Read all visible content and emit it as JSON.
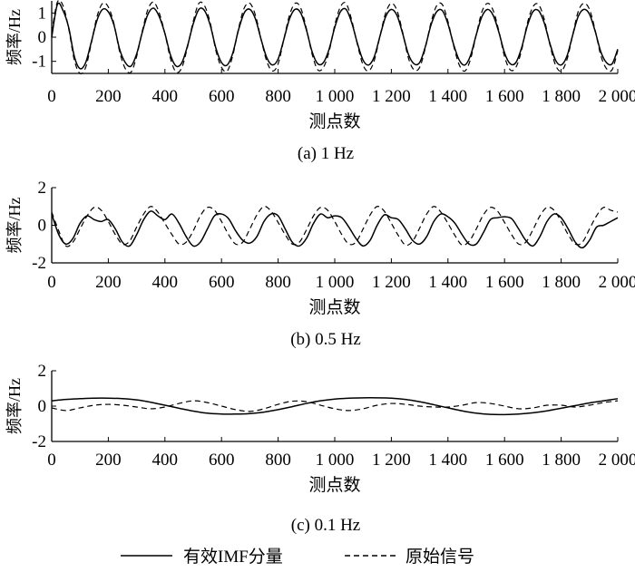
{
  "figure": {
    "legend": [
      {
        "label": "有效IMF分量",
        "style": "solid",
        "color": "#000000"
      },
      {
        "label": "原始信号",
        "style": "dashed",
        "color": "#000000"
      }
    ]
  },
  "chart_data": [
    {
      "type": "line",
      "subtitle": "(a) 1 Hz",
      "xlabel": "测点数",
      "ylabel": "频率/Hz",
      "xlim": [
        0,
        2000
      ],
      "ylim": [
        -1.5,
        1.5
      ],
      "xticks": [
        0,
        200,
        400,
        600,
        800,
        1000,
        1200,
        1400,
        1600,
        1800,
        2000
      ],
      "xtick_labels": [
        "0",
        "200",
        "400",
        "600",
        "800",
        "1 000",
        "1 200",
        "1 400",
        "1 600",
        "1 800",
        "2 000"
      ],
      "yticks": [
        1,
        0,
        -1
      ],
      "ytick_labels": [
        "1",
        "0",
        "-1"
      ],
      "series": [
        {
          "name": "有效IMF分量",
          "style": "solid",
          "x": [
            0,
            20,
            40,
            60,
            80,
            100,
            120,
            140,
            160,
            180,
            200,
            220,
            240,
            260,
            280,
            300,
            320,
            340,
            360,
            380,
            400,
            420,
            440,
            460,
            480,
            500,
            520,
            540,
            560,
            580,
            600,
            620,
            640,
            660,
            680,
            700,
            720,
            740,
            760,
            780,
            800,
            820,
            840,
            860,
            880,
            900,
            920,
            940,
            960,
            980,
            1000,
            1020,
            1040,
            1060,
            1080,
            1100,
            1120,
            1140,
            1160,
            1180,
            1200,
            1220,
            1240,
            1260,
            1280,
            1300,
            1320,
            1340,
            1360,
            1380,
            1400,
            1420,
            1440,
            1460,
            1480,
            1500,
            1520,
            1540,
            1560,
            1580,
            1600,
            1620,
            1640,
            1660,
            1680,
            1700,
            1720,
            1740,
            1760,
            1780,
            1800,
            1820,
            1840,
            1860,
            1880,
            1900,
            1920,
            1940,
            1960,
            1980,
            2000
          ],
          "y": [
            0,
            1.35,
            1.1,
            0.4,
            -0.8,
            -1.3,
            -1.05,
            -0.2,
            0.7,
            1.15,
            1.05,
            0.5,
            -0.5,
            -1.05,
            -1.2,
            -0.7,
            0.2,
            0.95,
            1.2,
            0.85,
            0.15,
            -0.75,
            -1.2,
            -1.05,
            -0.35,
            0.55,
            1.15,
            1.1,
            0.5,
            -0.45,
            -1.05,
            -1.15,
            -0.65,
            0.3,
            1.0,
            1.15,
            0.75,
            -0.1,
            -0.85,
            -1.15,
            -0.9,
            -0.1,
            0.75,
            1.15,
            1.0,
            0.3,
            -0.6,
            -1.1,
            -1.05,
            -0.5,
            0.4,
            1.05,
            1.15,
            0.6,
            -0.25,
            -0.95,
            -1.15,
            -0.8,
            0.05,
            0.85,
            1.15,
            0.9,
            0.15,
            -0.7,
            -1.1,
            -1.05,
            -0.4,
            0.5,
            1.05,
            1.1,
            0.55,
            -0.3,
            -0.95,
            -1.15,
            -0.75,
            0.1,
            0.85,
            1.15,
            0.9,
            0.2,
            -0.65,
            -1.1,
            -1.05,
            -0.45,
            0.45,
            1.05,
            1.1,
            0.6,
            -0.25,
            -0.95,
            -1.15,
            -0.8,
            0.05,
            0.85,
            1.15,
            0.95,
            0.25,
            -0.6,
            -1.05,
            -1.1,
            -0.5
          ]
        },
        {
          "name": "原始信号",
          "style": "dashed",
          "x": [
            0,
            20,
            40,
            60,
            80,
            100,
            120,
            140,
            160,
            180,
            200,
            220,
            240,
            260,
            280,
            300,
            320,
            340,
            360,
            380,
            400,
            420,
            440,
            460,
            480,
            500,
            520,
            540,
            560,
            580,
            600,
            620,
            640,
            660,
            680,
            700,
            720,
            740,
            760,
            780,
            800,
            820,
            840,
            860,
            880,
            900,
            920,
            940,
            960,
            980,
            1000,
            1020,
            1040,
            1060,
            1080,
            1100,
            1120,
            1140,
            1160,
            1180,
            1200,
            1220,
            1240,
            1260,
            1280,
            1300,
            1320,
            1340,
            1360,
            1380,
            1400,
            1420,
            1440,
            1460,
            1480,
            1500,
            1520,
            1540,
            1560,
            1580,
            1600,
            1620,
            1640,
            1660,
            1680,
            1700,
            1720,
            1740,
            1760,
            1780,
            1800,
            1820,
            1840,
            1860,
            1880,
            1900,
            1920,
            1940,
            1960,
            1980,
            2000
          ],
          "y": [
            0.2,
            1.45,
            1.3,
            0.35,
            -0.95,
            -1.5,
            -1.25,
            -0.25,
            0.85,
            1.4,
            1.25,
            0.55,
            -0.6,
            -1.3,
            -1.45,
            -0.8,
            0.25,
            1.15,
            1.45,
            1.0,
            0.15,
            -0.9,
            -1.45,
            -1.25,
            -0.4,
            0.65,
            1.4,
            1.3,
            0.6,
            -0.55,
            -1.25,
            -1.4,
            -0.75,
            0.35,
            1.2,
            1.4,
            0.9,
            -0.1,
            -1.0,
            -1.4,
            -1.1,
            -0.1,
            0.9,
            1.4,
            1.2,
            0.35,
            -0.7,
            -1.35,
            -1.25,
            -0.6,
            0.5,
            1.25,
            1.4,
            0.7,
            -0.3,
            -1.15,
            -1.4,
            -0.95,
            0.05,
            1.0,
            1.4,
            1.1,
            0.2,
            -0.85,
            -1.35,
            -1.25,
            -0.45,
            0.6,
            1.3,
            1.35,
            0.65,
            -0.35,
            -1.15,
            -1.4,
            -0.9,
            0.1,
            1.05,
            1.4,
            1.1,
            0.25,
            -0.8,
            -1.35,
            -1.25,
            -0.55,
            0.55,
            1.25,
            1.35,
            0.75,
            -0.3,
            -1.15,
            -1.4,
            -0.95,
            0.05,
            1.05,
            1.4,
            1.15,
            0.3,
            -0.75,
            -1.3,
            -1.35,
            -0.55
          ]
        }
      ]
    },
    {
      "type": "line",
      "subtitle": "(b) 0.5 Hz",
      "xlabel": "测点数",
      "ylabel": "频率/Hz",
      "xlim": [
        0,
        2000
      ],
      "ylim": [
        -2,
        2
      ],
      "xticks": [
        0,
        200,
        400,
        600,
        800,
        1000,
        1200,
        1400,
        1600,
        1800,
        2000
      ],
      "xtick_labels": [
        "0",
        "200",
        "400",
        "600",
        "800",
        "1 000",
        "1 200",
        "1 400",
        "1 600",
        "1 800",
        "2 000"
      ],
      "yticks": [
        2,
        0,
        -2
      ],
      "ytick_labels": [
        "2",
        "0",
        "-2"
      ],
      "series": [
        {
          "name": "有效IMF分量",
          "style": "solid",
          "x": [
            0,
            25,
            50,
            75,
            100,
            125,
            150,
            175,
            200,
            225,
            250,
            275,
            300,
            325,
            350,
            375,
            400,
            425,
            450,
            475,
            500,
            525,
            550,
            575,
            600,
            625,
            650,
            675,
            700,
            725,
            750,
            775,
            800,
            825,
            850,
            875,
            900,
            925,
            950,
            975,
            1000,
            1025,
            1050,
            1075,
            1100,
            1125,
            1150,
            1175,
            1200,
            1225,
            1250,
            1275,
            1300,
            1325,
            1350,
            1375,
            1400,
            1425,
            1450,
            1475,
            1500,
            1525,
            1550,
            1575,
            1600,
            1625,
            1650,
            1675,
            1700,
            1725,
            1750,
            1775,
            1800,
            1825,
            1850,
            1875,
            1900,
            1925,
            1950,
            1975,
            2000
          ],
          "y": [
            0.6,
            -0.5,
            -1.0,
            -0.7,
            0.1,
            0.5,
            0.3,
            0.2,
            0.3,
            -0.2,
            -0.9,
            -1.1,
            -0.5,
            0.3,
            0.75,
            0.5,
            0.3,
            0.6,
            0.1,
            -0.6,
            -1.1,
            -0.9,
            -0.2,
            0.5,
            0.6,
            0.35,
            -0.3,
            -0.8,
            -0.95,
            -0.6,
            0.2,
            0.6,
            0.5,
            -0.2,
            -0.9,
            -1.1,
            -0.7,
            0.1,
            0.6,
            0.4,
            0.5,
            0.4,
            -0.1,
            -0.7,
            -1.1,
            -0.8,
            0.0,
            0.55,
            0.4,
            0.3,
            -0.2,
            -0.8,
            -1.0,
            -0.6,
            0.2,
            0.6,
            0.45,
            0.1,
            -0.5,
            -1.0,
            -1.0,
            -0.4,
            0.3,
            0.4,
            0.45,
            0.35,
            -0.2,
            -0.8,
            -1.1,
            -0.6,
            0.2,
            0.6,
            0.4,
            -0.2,
            -0.9,
            -1.2,
            -0.8,
            -0.1,
            0.0,
            0.2,
            0.4
          ]
        },
        {
          "name": "原始信号",
          "style": "dashed",
          "x": [
            0,
            25,
            50,
            75,
            100,
            125,
            150,
            175,
            200,
            225,
            250,
            275,
            300,
            325,
            350,
            375,
            400,
            425,
            450,
            475,
            500,
            525,
            550,
            575,
            600,
            625,
            650,
            675,
            700,
            725,
            750,
            775,
            800,
            825,
            850,
            875,
            900,
            925,
            950,
            975,
            1000,
            1025,
            1050,
            1075,
            1100,
            1125,
            1150,
            1175,
            1200,
            1225,
            1250,
            1275,
            1300,
            1325,
            1350,
            1375,
            1400,
            1425,
            1450,
            1475,
            1500,
            1525,
            1550,
            1575,
            1600,
            1625,
            1650,
            1675,
            1700,
            1725,
            1750,
            1775,
            1800,
            1825,
            1850,
            1875,
            1900,
            1925,
            1950,
            1975,
            2000
          ],
          "y": [
            0.7,
            -0.3,
            -1.1,
            -0.9,
            -0.2,
            0.5,
            0.95,
            0.8,
            0.2,
            -0.5,
            -1.0,
            -0.85,
            -0.1,
            0.6,
            1.0,
            0.7,
            0.1,
            -0.5,
            -1.0,
            -0.9,
            -0.3,
            0.5,
            0.95,
            0.8,
            0.2,
            -0.5,
            -1.0,
            -0.9,
            -0.2,
            0.55,
            1.0,
            0.75,
            0.15,
            -0.5,
            -1.0,
            -0.9,
            -0.25,
            0.5,
            0.95,
            0.8,
            0.2,
            -0.5,
            -1.0,
            -0.9,
            -0.2,
            0.55,
            1.0,
            0.75,
            0.1,
            -0.55,
            -1.05,
            -0.85,
            -0.15,
            0.6,
            1.0,
            0.7,
            0.1,
            -0.55,
            -1.05,
            -0.85,
            -0.2,
            0.55,
            0.95,
            0.75,
            0.15,
            -0.5,
            -1.0,
            -0.9,
            -0.25,
            0.5,
            0.95,
            0.8,
            0.2,
            -0.5,
            -1.0,
            -0.9,
            -0.2,
            0.5,
            0.95,
            0.8,
            0.7
          ]
        }
      ]
    },
    {
      "type": "line",
      "subtitle": "(c) 0.1 Hz",
      "xlabel": "测点数",
      "ylabel": "频率/Hz",
      "xlim": [
        0,
        2000
      ],
      "ylim": [
        -2,
        2
      ],
      "xticks": [
        0,
        200,
        400,
        600,
        800,
        1000,
        1200,
        1400,
        1600,
        1800,
        2000
      ],
      "xtick_labels": [
        "0",
        "200",
        "400",
        "600",
        "800",
        "1 000",
        "1 200",
        "1 400",
        "1 600",
        "1 800",
        "2 000"
      ],
      "yticks": [
        2,
        0,
        -2
      ],
      "ytick_labels": [
        "2",
        "0",
        "-2"
      ],
      "series": [
        {
          "name": "有效IMF分量",
          "style": "solid",
          "x": [
            0,
            50,
            100,
            150,
            200,
            250,
            300,
            350,
            400,
            450,
            500,
            550,
            600,
            650,
            700,
            750,
            800,
            850,
            900,
            950,
            1000,
            1050,
            1100,
            1150,
            1200,
            1250,
            1300,
            1350,
            1400,
            1450,
            1500,
            1550,
            1600,
            1650,
            1700,
            1750,
            1800,
            1850,
            1900,
            1950,
            2000
          ],
          "y": [
            0.3,
            0.38,
            0.42,
            0.45,
            0.45,
            0.42,
            0.35,
            0.22,
            0.05,
            -0.12,
            -0.28,
            -0.4,
            -0.45,
            -0.45,
            -0.42,
            -0.34,
            -0.2,
            -0.03,
            0.15,
            0.3,
            0.4,
            0.45,
            0.47,
            0.47,
            0.45,
            0.38,
            0.25,
            0.08,
            -0.1,
            -0.27,
            -0.4,
            -0.47,
            -0.48,
            -0.45,
            -0.38,
            -0.27,
            -0.12,
            0.03,
            0.18,
            0.3,
            0.42
          ]
        },
        {
          "name": "原始信号",
          "style": "dashed",
          "x": [
            0,
            50,
            100,
            150,
            200,
            250,
            300,
            350,
            400,
            450,
            500,
            550,
            600,
            650,
            700,
            750,
            800,
            850,
            900,
            950,
            1000,
            1050,
            1100,
            1150,
            1200,
            1250,
            1300,
            1350,
            1400,
            1450,
            1500,
            1550,
            1600,
            1650,
            1700,
            1750,
            1800,
            1850,
            1900,
            1950,
            2000
          ],
          "y": [
            -0.1,
            -0.25,
            -0.1,
            0.05,
            0.1,
            0.05,
            -0.05,
            -0.15,
            -0.05,
            0.15,
            0.3,
            0.2,
            0.0,
            -0.2,
            -0.3,
            -0.15,
            0.1,
            0.28,
            0.25,
            0.05,
            -0.15,
            -0.25,
            -0.15,
            0.05,
            0.15,
            0.1,
            0.0,
            -0.05,
            -0.05,
            0.05,
            0.2,
            0.15,
            0.0,
            -0.15,
            -0.1,
            0.05,
            0.05,
            -0.05,
            0.05,
            0.2,
            0.3
          ]
        }
      ]
    }
  ]
}
